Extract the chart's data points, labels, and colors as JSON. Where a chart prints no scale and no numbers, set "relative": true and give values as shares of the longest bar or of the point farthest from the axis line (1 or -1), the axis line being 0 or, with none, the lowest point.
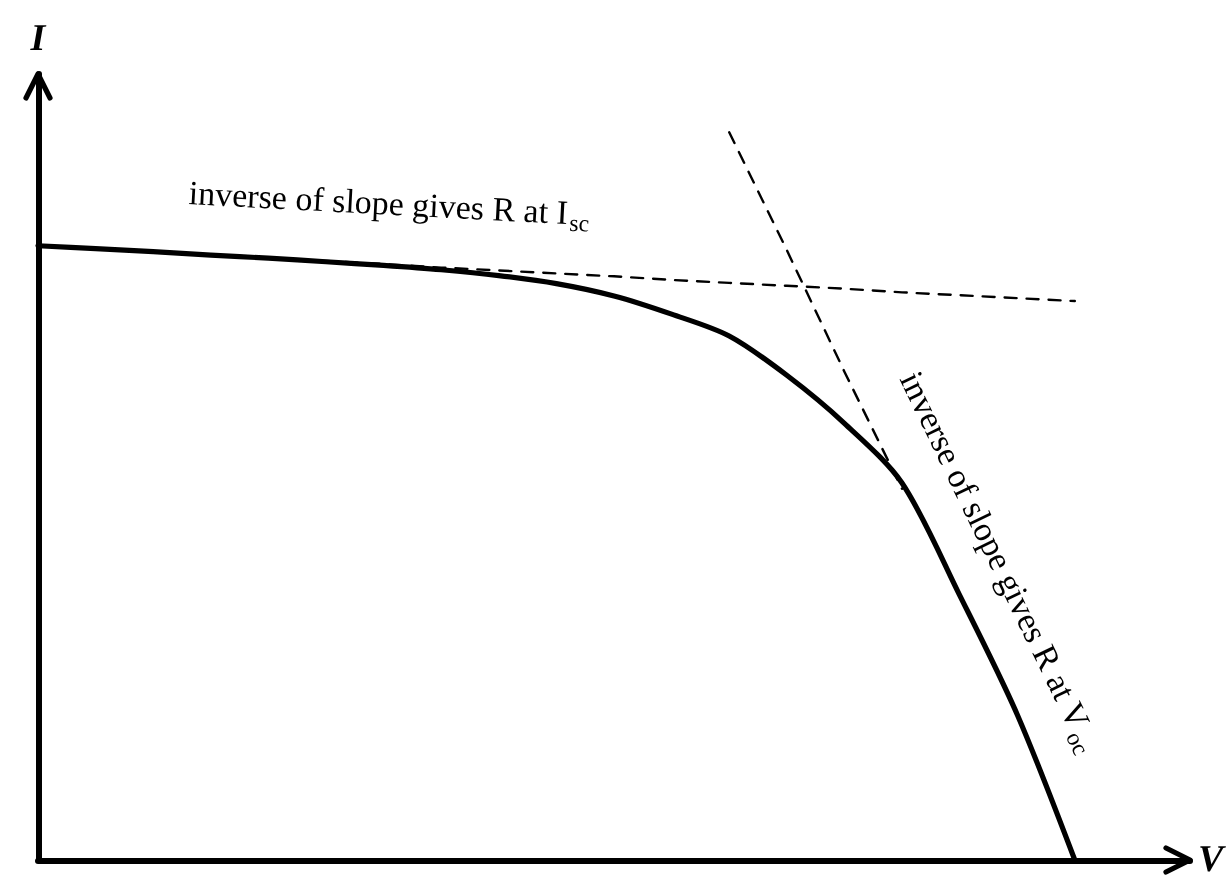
{
  "chart_data": {
    "type": "line",
    "relative": true,
    "xlabel": "V",
    "ylabel": "I",
    "marker": "none",
    "categories": [
      null,
      null,
      null,
      null,
      null,
      null,
      null,
      null,
      null,
      null,
      null,
      null,
      null,
      null,
      null,
      null,
      null,
      null,
      null,
      null,
      null
    ],
    "series": [
      {
        "color": "#000000",
        "line_style": "solid",
        "values": [
          0.844,
          0.84,
          0.836,
          0.831,
          0.827,
          0.822,
          0.817,
          0.811,
          0.803,
          0.792,
          0.775,
          0.75,
          0.72,
          0.666,
          0.6,
          0.518,
          0.364,
          0.2,
          0,
          null,
          null
        ]
      },
      {
        "color": "#000000",
        "line_style": "dashed",
        "values": [
          0.844,
          0.84,
          0.836,
          0.831,
          0.827,
          0.823,
          0.819,
          0.814,
          0.81,
          0.806,
          0.802,
          0.797,
          0.793,
          0.789,
          0.785,
          0.78,
          0.776,
          0.772,
          0.768,
          null,
          null
        ]
      },
      {
        "color": "#000000",
        "line_style": "dashed",
        "values": [
          null,
          null,
          null,
          null,
          null,
          null,
          null,
          null,
          null,
          null,
          null,
          null,
          1,
          0.838,
          0.671,
          0.51,
          null,
          null,
          null,
          null,
          null
        ]
      }
    ],
    "annotations": [
      "inverse of slope gives R at I$_{sc}$",
      "inverse of slope gives R at V$_{oc}$"
    ]
  }
}
